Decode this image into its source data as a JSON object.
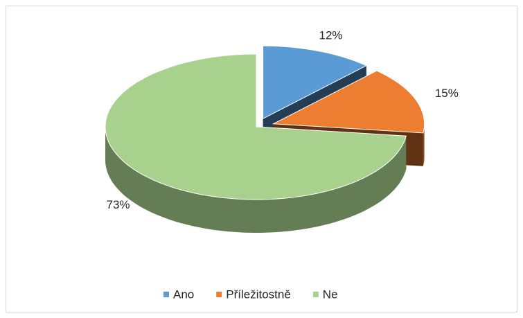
{
  "chart_data": {
    "type": "pie",
    "categories": [
      "Ano",
      "Příležitostně",
      "Ne"
    ],
    "values": [
      12,
      15,
      73
    ],
    "value_labels": [
      "12%",
      "15%",
      "73%"
    ],
    "colors": [
      "#5b9bd5",
      "#ed7d31",
      "#a9d18e"
    ],
    "legend": "bottom"
  }
}
